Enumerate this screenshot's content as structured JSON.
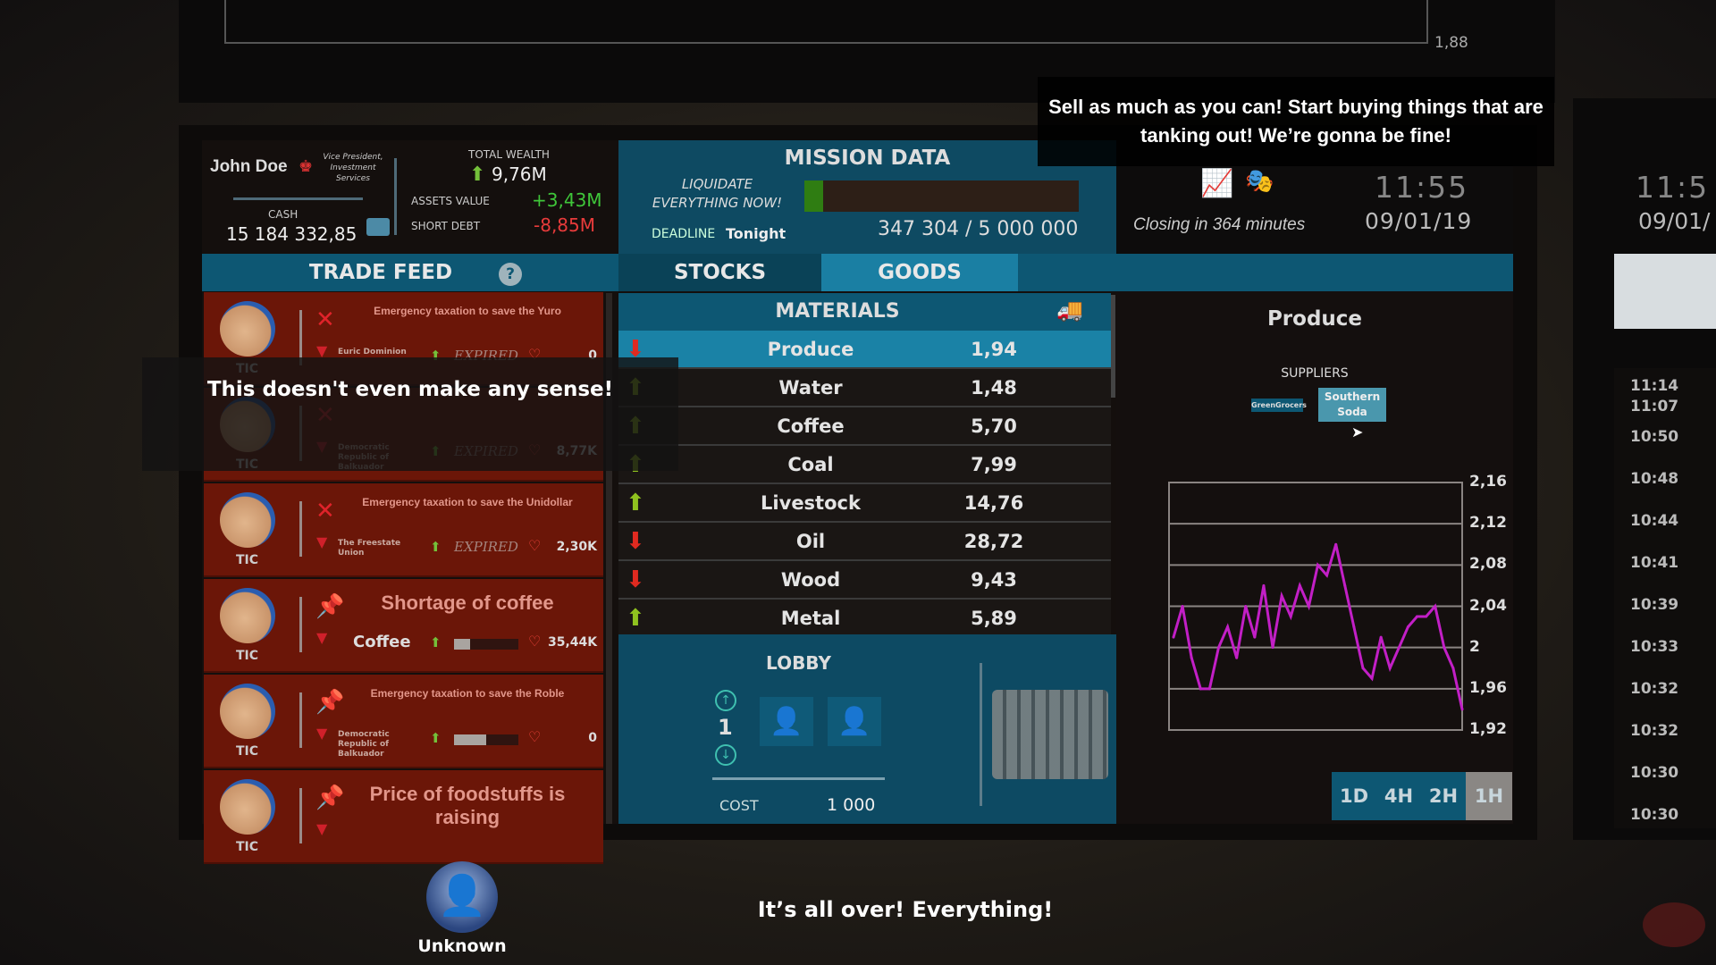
{
  "top_screen": {
    "value": "1,88"
  },
  "profile": {
    "name": "John Doe",
    "role": "Vice President, Investment Services",
    "cash_label": "CASH",
    "cash": "15 184 332,85",
    "total_wealth_label": "TOTAL WEALTH",
    "total_wealth": "9,76M",
    "assets_label": "ASSETS VALUE",
    "assets": "+3,43M",
    "debt_label": "SHORT DEBT",
    "debt": "-8,85M"
  },
  "mission": {
    "title": "MISSION DATA",
    "objective": "LIQUIDATE EVERYTHING NOW!",
    "deadline_label": "DEADLINE",
    "deadline": "Tonight",
    "progress_text": "347 304 / 5 000 000",
    "progress": 0.069,
    "bar_color": "#2f7d12"
  },
  "status": {
    "closing": "Closing in 364 minutes",
    "time": "11:55",
    "date": "09/01/19",
    "icons": [
      "chart-up-icon",
      "theater-masks-icon"
    ]
  },
  "tabs": {
    "trade_feed": "TRADE FEED",
    "help": "?",
    "stocks": "STOCKS",
    "goods": "GOODS",
    "active": "GOODS"
  },
  "feed": [
    {
      "source": "TIC",
      "icon": "x-icon",
      "title": "Emergency taxation to save the Yuro",
      "region": "Euric Dominion",
      "status": "EXPIRED",
      "value": "0"
    },
    {
      "source": "TIC",
      "icon": "x-icon",
      "title": "",
      "region": "Democratic Republic of Balkuador",
      "status": "EXPIRED",
      "value": "8,77K"
    },
    {
      "source": "TIC",
      "icon": "x-icon",
      "title": "Emergency taxation to save the Unidollar",
      "region": "The Freestate Union",
      "status": "EXPIRED",
      "value": "2,30K"
    },
    {
      "source": "TIC",
      "icon": "pin-icon",
      "title": "Shortage of coffee",
      "region": "Coffee",
      "progress": 0.25,
      "value": "35,44K"
    },
    {
      "source": "TIC",
      "icon": "pin-icon",
      "title": "Emergency taxation to save the Roble",
      "region": "Democratic Republic of Balkuador",
      "progress": 0.5,
      "value": "0"
    },
    {
      "source": "TIC",
      "icon": "pin-icon",
      "title": "Price of foodstuffs is raising"
    }
  ],
  "materials": {
    "title": "MATERIALS",
    "rows": [
      {
        "name": "Produce",
        "price": "1,94",
        "trend": "down",
        "selected": true
      },
      {
        "name": "Water",
        "price": "1,48",
        "trend": "up"
      },
      {
        "name": "Coffee",
        "price": "5,70",
        "trend": "up"
      },
      {
        "name": "Coal",
        "price": "7,99",
        "trend": "up"
      },
      {
        "name": "Livestock",
        "price": "14,76",
        "trend": "up"
      },
      {
        "name": "Oil",
        "price": "28,72",
        "trend": "down"
      },
      {
        "name": "Wood",
        "price": "9,43",
        "trend": "down"
      },
      {
        "name": "Metal",
        "price": "5,89",
        "trend": "up"
      }
    ]
  },
  "lobby": {
    "title": "LOBBY",
    "count": "1",
    "cost_label": "COST",
    "cost": "1 000"
  },
  "detail": {
    "title": "Produce",
    "suppliers_label": "SUPPLIERS",
    "suppliers": [
      "GreenGrocers",
      "Southern Soda"
    ],
    "timeframes": [
      "1D",
      "4H",
      "2H",
      "1H"
    ],
    "active_timeframe": "1H"
  },
  "chart_data": {
    "type": "line",
    "ylim": [
      1.92,
      2.16
    ],
    "yticks": [
      "2,16",
      "2,12",
      "2,08",
      "2,04",
      "2",
      "1,96",
      "1,92"
    ],
    "grid": true,
    "color": "#c21fc6",
    "values": [
      2.01,
      2.04,
      1.99,
      1.96,
      1.96,
      2.0,
      2.02,
      1.99,
      2.04,
      2.01,
      2.06,
      2.0,
      2.05,
      2.03,
      2.06,
      2.04,
      2.08,
      2.07,
      2.1,
      2.06,
      2.02,
      1.98,
      1.97,
      2.01,
      1.98,
      2.0,
      2.02,
      2.03,
      2.03,
      2.04,
      2.0,
      1.98,
      1.94
    ]
  },
  "subtitles": {
    "left": "This doesn't even make any sense!",
    "top": "Sell as much as you can! Start buying things that are tanking out! We’re gonna be fine!",
    "bottom": "It’s all over! Everything!"
  },
  "speaker": {
    "name": "Unknown"
  },
  "side_feed": {
    "times": [
      "11:14",
      "11:07",
      "10:50",
      "10:48",
      "10:44",
      "10:41",
      "10:39",
      "10:33",
      "10:32",
      "10:32",
      "10:30",
      "10:30"
    ],
    "time": "11:5",
    "date": "09/01/"
  }
}
